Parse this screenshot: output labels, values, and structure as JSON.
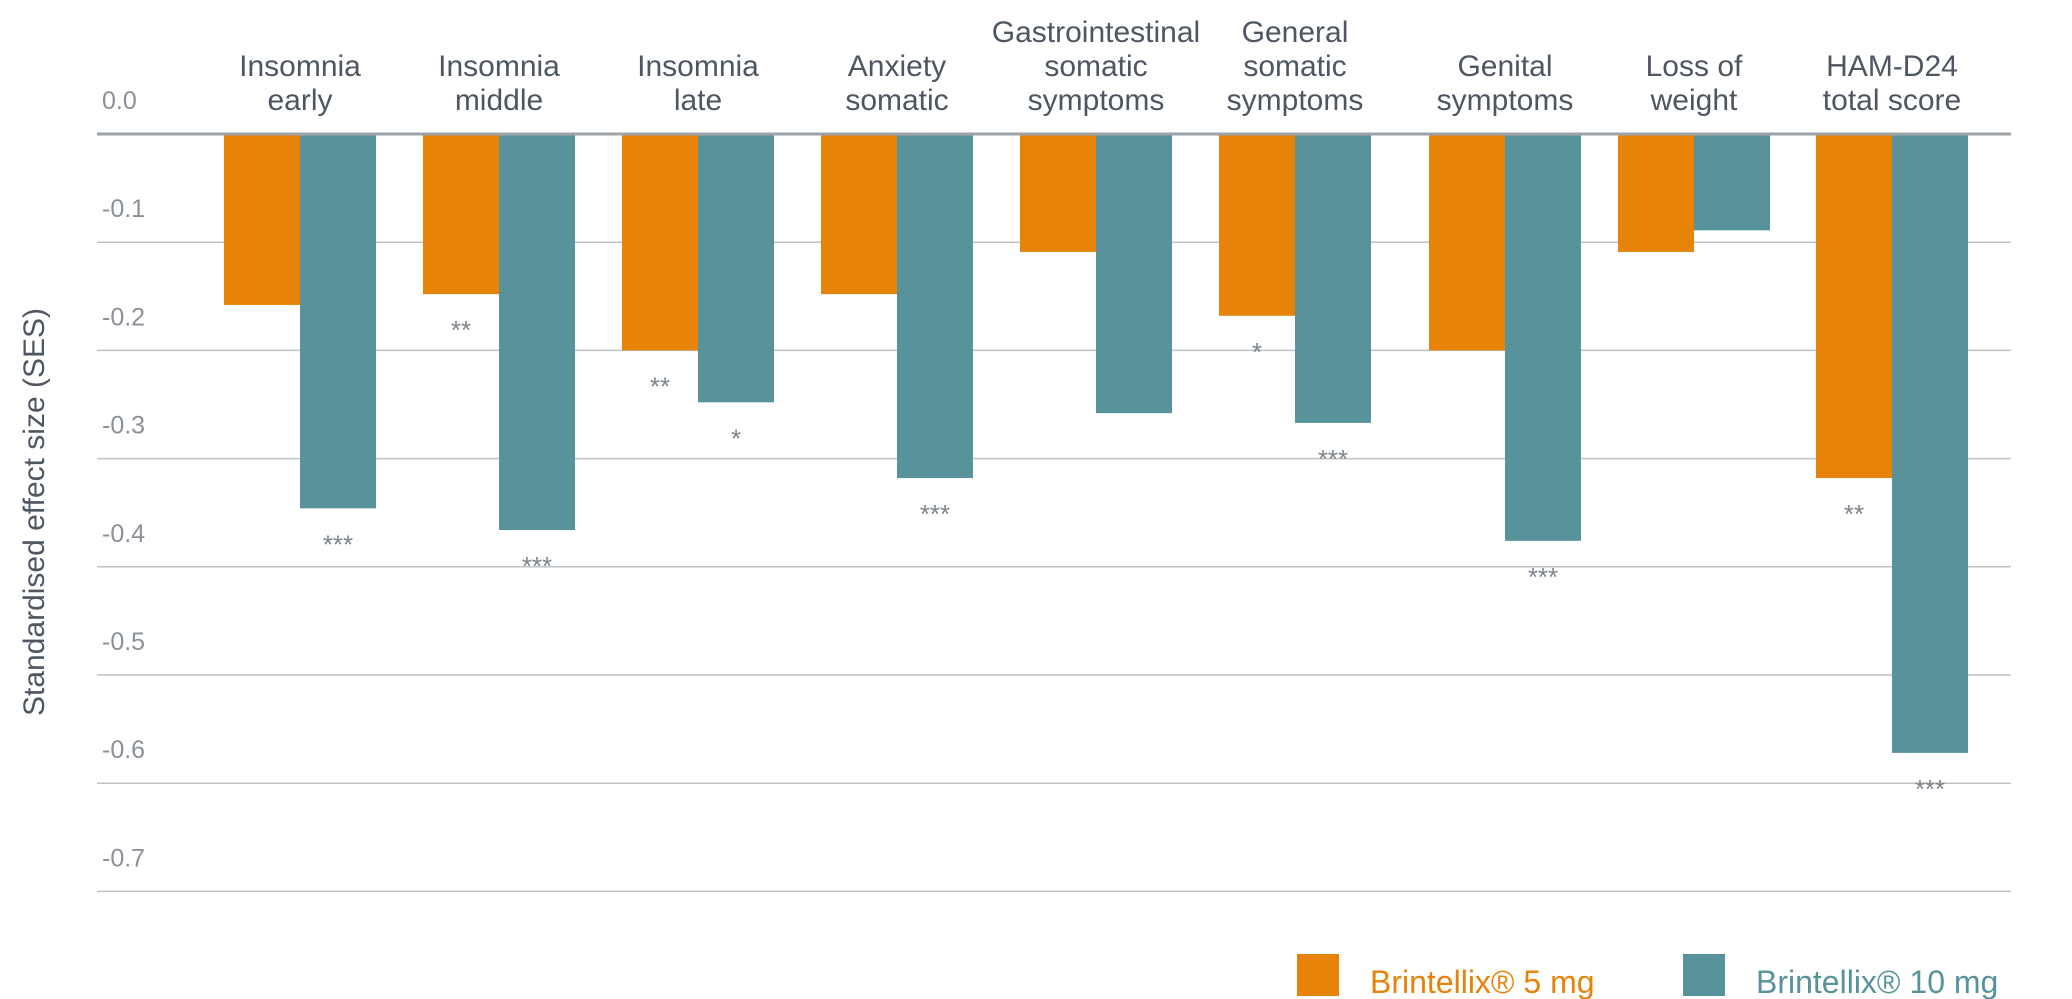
{
  "chart_data": {
    "type": "bar",
    "ylabel": "Standardised effect size (SES)",
    "ylim": [
      -0.7,
      0.0
    ],
    "yticks": [
      "0.0",
      "-0.1",
      "-0.2",
      "-0.3",
      "-0.4",
      "-0.5",
      "-0.6",
      "-0.7"
    ],
    "grid": true,
    "legend_position": "bottom-right",
    "categories": [
      [
        "Insomnia",
        "early"
      ],
      [
        "Insomnia",
        "middle"
      ],
      [
        "Insomnia",
        "late"
      ],
      [
        "Anxiety",
        "somatic"
      ],
      [
        "Gastrointestinal",
        "somatic",
        "symptoms"
      ],
      [
        "General",
        "somatic",
        "symptoms"
      ],
      [
        "Genital",
        "symptoms"
      ],
      [
        "Loss of",
        "weight"
      ],
      [
        "HAM-D24",
        "total score"
      ]
    ],
    "series": [
      {
        "name": "Brintellix® 5 mg",
        "color": "#e8830a",
        "values": [
          -0.158,
          -0.148,
          -0.2,
          -0.148,
          -0.109,
          -0.168,
          -0.2,
          -0.109,
          -0.318
        ],
        "significance": [
          "",
          "**",
          "**",
          "",
          "",
          "*",
          "",
          "",
          "**"
        ]
      },
      {
        "name": "Brintellix® 10 mg",
        "color": "#58929a",
        "values": [
          -0.346,
          -0.366,
          -0.248,
          -0.318,
          -0.258,
          -0.267,
          -0.376,
          -0.089,
          -0.572
        ],
        "significance": [
          "***",
          "***",
          "*",
          "***",
          "",
          "***",
          "***",
          "",
          "***"
        ]
      }
    ]
  }
}
